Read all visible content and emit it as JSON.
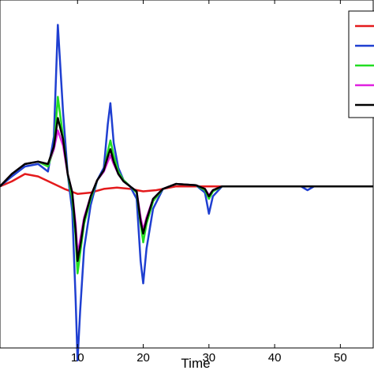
{
  "chart_data": {
    "type": "line",
    "title": "",
    "xlabel": "Time",
    "ylabel": "",
    "xlim": [
      -1.8,
      55
    ],
    "ylim": [
      -1.3,
      1.5
    ],
    "x_ticks": [
      10,
      20,
      30,
      40,
      50
    ],
    "x_tick_labels": [
      "10",
      "20",
      "30",
      "40",
      "50"
    ],
    "grid": false,
    "legend_position": "top-right",
    "series": [
      {
        "color": "#e41a1c",
        "x": [
          -1.8,
          0,
          2,
          4,
          6,
          8,
          10,
          12,
          14,
          16,
          18,
          20,
          22,
          25,
          30,
          35,
          55
        ],
        "y": [
          0,
          0.04,
          0.1,
          0.08,
          0.03,
          -0.02,
          -0.06,
          -0.05,
          -0.02,
          -0.01,
          -0.02,
          -0.04,
          -0.03,
          0.0,
          0.0,
          0.0,
          0.0
        ]
      },
      {
        "color": "#1f3fd1",
        "x": [
          -1.8,
          0,
          2,
          4,
          5.5,
          6.4,
          7,
          7.8,
          8.5,
          9.2,
          9.7,
          10,
          10.4,
          11,
          12,
          13,
          14,
          14.6,
          15,
          15.5,
          16.2,
          17,
          18,
          19,
          19.6,
          20,
          20.5,
          21.5,
          23,
          25,
          28,
          29.4,
          30,
          30.6,
          32,
          35,
          40,
          44,
          45,
          46,
          50,
          55
        ],
        "y": [
          0,
          0.08,
          0.16,
          0.18,
          0.12,
          0.4,
          1.3,
          0.6,
          0.1,
          -0.2,
          -0.9,
          -1.4,
          -1.0,
          -0.5,
          -0.15,
          0.05,
          0.15,
          0.5,
          0.67,
          0.35,
          0.15,
          0.05,
          0.0,
          -0.1,
          -0.6,
          -0.78,
          -0.5,
          -0.18,
          -0.02,
          0.02,
          0.01,
          -0.05,
          -0.22,
          -0.08,
          0.0,
          0.0,
          0.0,
          0.0,
          -0.03,
          0.0,
          0.0,
          0.0
        ]
      },
      {
        "color": "#22dd22",
        "x": [
          -1.8,
          0,
          2,
          4,
          5.5,
          6.4,
          7,
          7.8,
          8.5,
          9.2,
          9.7,
          10,
          10.5,
          11,
          12,
          13,
          14,
          14.6,
          15,
          15.5,
          16.2,
          17,
          18,
          19,
          19.6,
          20,
          20.5,
          21.5,
          23,
          25,
          28,
          29.4,
          30,
          30.6,
          32,
          35,
          55
        ],
        "y": [
          0,
          0.1,
          0.18,
          0.2,
          0.16,
          0.3,
          0.72,
          0.4,
          0.1,
          -0.1,
          -0.4,
          -0.7,
          -0.5,
          -0.3,
          -0.1,
          0.05,
          0.12,
          0.28,
          0.37,
          0.25,
          0.12,
          0.05,
          0.0,
          -0.05,
          -0.3,
          -0.45,
          -0.3,
          -0.12,
          -0.02,
          0.02,
          0.01,
          -0.03,
          -0.1,
          -0.04,
          0.0,
          0.0,
          0.0
        ]
      },
      {
        "color": "#e020e0",
        "x": [
          -1.8,
          0,
          2,
          4,
          5.5,
          6.4,
          7,
          7.8,
          8.5,
          9.2,
          9.7,
          10,
          10.5,
          11,
          12,
          13,
          14,
          14.6,
          15,
          15.5,
          16.2,
          17,
          18,
          19,
          19.6,
          20,
          20.5,
          21.5,
          23,
          25,
          28,
          29.4,
          30,
          30.6,
          32,
          35,
          55
        ],
        "y": [
          0,
          0.1,
          0.18,
          0.2,
          0.18,
          0.3,
          0.45,
          0.33,
          0.1,
          -0.05,
          -0.3,
          -0.55,
          -0.4,
          -0.25,
          -0.08,
          0.05,
          0.12,
          0.2,
          0.25,
          0.18,
          0.1,
          0.04,
          0.0,
          -0.04,
          -0.25,
          -0.35,
          -0.25,
          -0.1,
          -0.02,
          0.02,
          0.01,
          -0.02,
          -0.07,
          -0.03,
          0.0,
          0.0,
          0.0
        ]
      },
      {
        "color": "#000000",
        "x": [
          -1.8,
          0,
          2,
          4,
          5.5,
          6.4,
          7,
          7.8,
          8.5,
          9.2,
          9.7,
          10,
          10.5,
          11,
          12,
          13,
          14,
          14.6,
          15,
          15.5,
          16.2,
          17,
          18,
          19,
          19.6,
          20,
          20.5,
          21.5,
          23,
          25,
          28,
          29.4,
          30,
          30.6,
          32,
          35,
          55
        ],
        "y": [
          0,
          0.1,
          0.18,
          0.2,
          0.18,
          0.32,
          0.55,
          0.38,
          0.1,
          -0.05,
          -0.35,
          -0.6,
          -0.45,
          -0.27,
          -0.08,
          0.05,
          0.13,
          0.24,
          0.3,
          0.2,
          0.1,
          0.04,
          0.0,
          -0.04,
          -0.28,
          -0.38,
          -0.27,
          -0.1,
          -0.02,
          0.02,
          0.01,
          -0.02,
          -0.08,
          -0.03,
          0.0,
          0.0,
          0.0
        ]
      }
    ]
  }
}
